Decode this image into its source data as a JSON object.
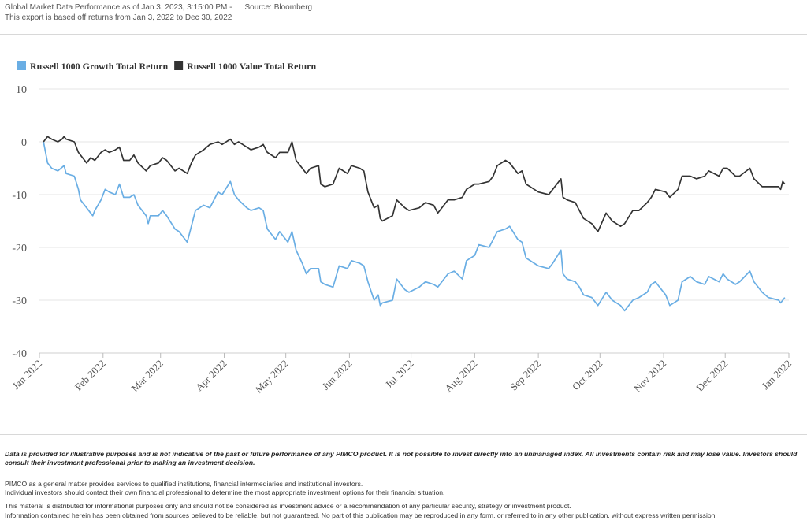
{
  "header": {
    "line1": "Global Market Data Performance as of Jan 3, 2023, 3:15:00 PM -",
    "source": "Source: Bloomberg",
    "line2": "This export is based off returns from Jan 3, 2022 to Dec 30, 2022"
  },
  "chart_data": {
    "type": "line",
    "title": "",
    "xlabel": "",
    "ylabel": "",
    "ylim": [
      -40,
      10
    ],
    "yticks": [
      "10",
      "0",
      "-10",
      "-20",
      "-30",
      "-40"
    ],
    "xticks": [
      "Jan 2022",
      "Feb 2022",
      "Mar 2022",
      "Apr 2022",
      "May 2022",
      "Jun 2022",
      "Jul 2022",
      "Aug 2022",
      "Sep 2022",
      "Oct 2022",
      "Nov 2022",
      "Dec 2022",
      "Jan 2022"
    ],
    "grid": true,
    "legend_position": "top-left",
    "x_range": [
      "2022-01-01",
      "2023-01-01"
    ],
    "series": [
      {
        "name": "Russell 1000 Growth Total Return",
        "color": "#6aaee4",
        "points": [
          [
            "2022-01-03",
            0
          ],
          [
            "2022-01-05",
            -4
          ],
          [
            "2022-01-07",
            -5
          ],
          [
            "2022-01-10",
            -5.5
          ],
          [
            "2022-01-13",
            -4.5
          ],
          [
            "2022-01-14",
            -6
          ],
          [
            "2022-01-18",
            -6.5
          ],
          [
            "2022-01-20",
            -9
          ],
          [
            "2022-01-21",
            -11
          ],
          [
            "2022-01-24",
            -12.5
          ],
          [
            "2022-01-27",
            -14
          ],
          [
            "2022-01-28",
            -13
          ],
          [
            "2022-01-31",
            -11
          ],
          [
            "2022-02-02",
            -9
          ],
          [
            "2022-02-04",
            -9.5
          ],
          [
            "2022-02-07",
            -10
          ],
          [
            "2022-02-09",
            -8
          ],
          [
            "2022-02-11",
            -10.5
          ],
          [
            "2022-02-14",
            -10.5
          ],
          [
            "2022-02-16",
            -10
          ],
          [
            "2022-02-18",
            -12
          ],
          [
            "2022-02-22",
            -14
          ],
          [
            "2022-02-23",
            -15.5
          ],
          [
            "2022-02-24",
            -14
          ],
          [
            "2022-02-28",
            -14
          ],
          [
            "2022-03-02",
            -13
          ],
          [
            "2022-03-04",
            -14
          ],
          [
            "2022-03-08",
            -16.5
          ],
          [
            "2022-03-10",
            -17
          ],
          [
            "2022-03-14",
            -19
          ],
          [
            "2022-03-16",
            -16
          ],
          [
            "2022-03-18",
            -13
          ],
          [
            "2022-03-22",
            -12
          ],
          [
            "2022-03-25",
            -12.5
          ],
          [
            "2022-03-29",
            -9.5
          ],
          [
            "2022-03-31",
            -10
          ],
          [
            "2022-04-04",
            -7.5
          ],
          [
            "2022-04-06",
            -10
          ],
          [
            "2022-04-08",
            -11
          ],
          [
            "2022-04-12",
            -12.5
          ],
          [
            "2022-04-14",
            -13
          ],
          [
            "2022-04-18",
            -12.5
          ],
          [
            "2022-04-20",
            -13
          ],
          [
            "2022-04-22",
            -16.5
          ],
          [
            "2022-04-26",
            -18.5
          ],
          [
            "2022-04-28",
            -17
          ],
          [
            "2022-05-02",
            -19
          ],
          [
            "2022-05-04",
            -17
          ],
          [
            "2022-05-06",
            -20.5
          ],
          [
            "2022-05-09",
            -23
          ],
          [
            "2022-05-11",
            -25
          ],
          [
            "2022-05-13",
            -24
          ],
          [
            "2022-05-17",
            -24
          ],
          [
            "2022-05-18",
            -26.5
          ],
          [
            "2022-05-20",
            -27
          ],
          [
            "2022-05-24",
            -27.5
          ],
          [
            "2022-05-27",
            -23.5
          ],
          [
            "2022-05-31",
            -24
          ],
          [
            "2022-06-02",
            -22.5
          ],
          [
            "2022-06-06",
            -23
          ],
          [
            "2022-06-08",
            -23.5
          ],
          [
            "2022-06-10",
            -26.5
          ],
          [
            "2022-06-13",
            -30
          ],
          [
            "2022-06-15",
            -29
          ],
          [
            "2022-06-16",
            -31
          ],
          [
            "2022-06-17",
            -30.5
          ],
          [
            "2022-06-22",
            -30
          ],
          [
            "2022-06-24",
            -26
          ],
          [
            "2022-06-28",
            -28
          ],
          [
            "2022-06-30",
            -28.5
          ],
          [
            "2022-07-05",
            -27.5
          ],
          [
            "2022-07-08",
            -26.5
          ],
          [
            "2022-07-12",
            -27
          ],
          [
            "2022-07-14",
            -27.5
          ],
          [
            "2022-07-19",
            -25
          ],
          [
            "2022-07-22",
            -24.5
          ],
          [
            "2022-07-26",
            -26
          ],
          [
            "2022-07-28",
            -22.5
          ],
          [
            "2022-08-01",
            -21.5
          ],
          [
            "2022-08-03",
            -19.5
          ],
          [
            "2022-08-08",
            -20
          ],
          [
            "2022-08-10",
            -18.5
          ],
          [
            "2022-08-12",
            -17
          ],
          [
            "2022-08-16",
            -16.5
          ],
          [
            "2022-08-18",
            -16
          ],
          [
            "2022-08-22",
            -18.5
          ],
          [
            "2022-08-24",
            -19
          ],
          [
            "2022-08-26",
            -22
          ],
          [
            "2022-08-30",
            -23
          ],
          [
            "2022-09-01",
            -23.5
          ],
          [
            "2022-09-06",
            -24
          ],
          [
            "2022-09-08",
            -23
          ],
          [
            "2022-09-12",
            -20.5
          ],
          [
            "2022-09-13",
            -25
          ],
          [
            "2022-09-15",
            -26
          ],
          [
            "2022-09-19",
            -26.5
          ],
          [
            "2022-09-21",
            -27.5
          ],
          [
            "2022-09-23",
            -29
          ],
          [
            "2022-09-27",
            -29.5
          ],
          [
            "2022-09-30",
            -31
          ],
          [
            "2022-10-04",
            -28.5
          ],
          [
            "2022-10-07",
            -30
          ],
          [
            "2022-10-11",
            -31
          ],
          [
            "2022-10-13",
            -32
          ],
          [
            "2022-10-17",
            -30
          ],
          [
            "2022-10-20",
            -29.5
          ],
          [
            "2022-10-24",
            -28.5
          ],
          [
            "2022-10-26",
            -27
          ],
          [
            "2022-10-28",
            -26.5
          ],
          [
            "2022-11-02",
            -29
          ],
          [
            "2022-11-04",
            -31
          ],
          [
            "2022-11-08",
            -30
          ],
          [
            "2022-11-10",
            -26.5
          ],
          [
            "2022-11-14",
            -25.5
          ],
          [
            "2022-11-17",
            -26.5
          ],
          [
            "2022-11-21",
            -27
          ],
          [
            "2022-11-23",
            -25.5
          ],
          [
            "2022-11-28",
            -26.5
          ],
          [
            "2022-11-30",
            -25
          ],
          [
            "2022-12-02",
            -26
          ],
          [
            "2022-12-06",
            -27
          ],
          [
            "2022-12-08",
            -26.5
          ],
          [
            "2022-12-13",
            -24.5
          ],
          [
            "2022-12-15",
            -26.5
          ],
          [
            "2022-12-19",
            -28.5
          ],
          [
            "2022-12-22",
            -29.5
          ],
          [
            "2022-12-27",
            -30
          ],
          [
            "2022-12-28",
            -30.5
          ],
          [
            "2022-12-30",
            -29.5
          ]
        ]
      },
      {
        "name": "Russell 1000 Value Total Return",
        "color": "#333333",
        "points": [
          [
            "2022-01-03",
            0
          ],
          [
            "2022-01-05",
            1
          ],
          [
            "2022-01-07",
            0.5
          ],
          [
            "2022-01-10",
            0
          ],
          [
            "2022-01-12",
            0.5
          ],
          [
            "2022-01-13",
            1
          ],
          [
            "2022-01-14",
            0.5
          ],
          [
            "2022-01-18",
            0
          ],
          [
            "2022-01-20",
            -2
          ],
          [
            "2022-01-24",
            -4
          ],
          [
            "2022-01-26",
            -3
          ],
          [
            "2022-01-28",
            -3.5
          ],
          [
            "2022-01-31",
            -2
          ],
          [
            "2022-02-02",
            -1.5
          ],
          [
            "2022-02-04",
            -2
          ],
          [
            "2022-02-07",
            -1.5
          ],
          [
            "2022-02-09",
            -1
          ],
          [
            "2022-02-11",
            -3.5
          ],
          [
            "2022-02-14",
            -3.5
          ],
          [
            "2022-02-16",
            -2.5
          ],
          [
            "2022-02-18",
            -4
          ],
          [
            "2022-02-22",
            -5.5
          ],
          [
            "2022-02-24",
            -4.5
          ],
          [
            "2022-02-28",
            -4
          ],
          [
            "2022-03-02",
            -3
          ],
          [
            "2022-03-04",
            -3.5
          ],
          [
            "2022-03-08",
            -5.5
          ],
          [
            "2022-03-10",
            -5
          ],
          [
            "2022-03-14",
            -6
          ],
          [
            "2022-03-16",
            -4
          ],
          [
            "2022-03-18",
            -2.5
          ],
          [
            "2022-03-22",
            -1.5
          ],
          [
            "2022-03-25",
            -0.5
          ],
          [
            "2022-03-29",
            0
          ],
          [
            "2022-03-31",
            -0.5
          ],
          [
            "2022-04-04",
            0.5
          ],
          [
            "2022-04-06",
            -0.5
          ],
          [
            "2022-04-08",
            0
          ],
          [
            "2022-04-12",
            -1
          ],
          [
            "2022-04-14",
            -1.5
          ],
          [
            "2022-04-18",
            -1
          ],
          [
            "2022-04-20",
            -0.5
          ],
          [
            "2022-04-22",
            -2
          ],
          [
            "2022-04-26",
            -3
          ],
          [
            "2022-04-28",
            -2
          ],
          [
            "2022-05-02",
            -2
          ],
          [
            "2022-05-04",
            0
          ],
          [
            "2022-05-06",
            -3.5
          ],
          [
            "2022-05-09",
            -5
          ],
          [
            "2022-05-11",
            -6
          ],
          [
            "2022-05-13",
            -5
          ],
          [
            "2022-05-17",
            -4.5
          ],
          [
            "2022-05-18",
            -8
          ],
          [
            "2022-05-20",
            -8.5
          ],
          [
            "2022-05-24",
            -8
          ],
          [
            "2022-05-27",
            -5
          ],
          [
            "2022-05-31",
            -6
          ],
          [
            "2022-06-02",
            -4.5
          ],
          [
            "2022-06-06",
            -5
          ],
          [
            "2022-06-08",
            -5.5
          ],
          [
            "2022-06-10",
            -9.5
          ],
          [
            "2022-06-13",
            -12.5
          ],
          [
            "2022-06-15",
            -12
          ],
          [
            "2022-06-16",
            -14.5
          ],
          [
            "2022-06-17",
            -15
          ],
          [
            "2022-06-22",
            -14
          ],
          [
            "2022-06-24",
            -11
          ],
          [
            "2022-06-28",
            -12.5
          ],
          [
            "2022-06-30",
            -13
          ],
          [
            "2022-07-05",
            -12.5
          ],
          [
            "2022-07-08",
            -11.5
          ],
          [
            "2022-07-12",
            -12
          ],
          [
            "2022-07-14",
            -13.5
          ],
          [
            "2022-07-19",
            -11
          ],
          [
            "2022-07-22",
            -11
          ],
          [
            "2022-07-26",
            -10.5
          ],
          [
            "2022-07-28",
            -9
          ],
          [
            "2022-08-01",
            -8
          ],
          [
            "2022-08-03",
            -8
          ],
          [
            "2022-08-08",
            -7.5
          ],
          [
            "2022-08-10",
            -6.5
          ],
          [
            "2022-08-12",
            -4.5
          ],
          [
            "2022-08-16",
            -3.5
          ],
          [
            "2022-08-18",
            -4
          ],
          [
            "2022-08-22",
            -6
          ],
          [
            "2022-08-24",
            -5.5
          ],
          [
            "2022-08-26",
            -8
          ],
          [
            "2022-08-30",
            -9
          ],
          [
            "2022-09-01",
            -9.5
          ],
          [
            "2022-09-06",
            -10
          ],
          [
            "2022-09-08",
            -9
          ],
          [
            "2022-09-12",
            -7
          ],
          [
            "2022-09-13",
            -10.5
          ],
          [
            "2022-09-15",
            -11
          ],
          [
            "2022-09-19",
            -11.5
          ],
          [
            "2022-09-21",
            -13
          ],
          [
            "2022-09-23",
            -14.5
          ],
          [
            "2022-09-27",
            -15.5
          ],
          [
            "2022-09-30",
            -17
          ],
          [
            "2022-10-04",
            -13.5
          ],
          [
            "2022-10-07",
            -15
          ],
          [
            "2022-10-11",
            -16
          ],
          [
            "2022-10-13",
            -15.5
          ],
          [
            "2022-10-17",
            -13
          ],
          [
            "2022-10-20",
            -13
          ],
          [
            "2022-10-24",
            -11.5
          ],
          [
            "2022-10-26",
            -10.5
          ],
          [
            "2022-10-28",
            -9
          ],
          [
            "2022-11-02",
            -9.5
          ],
          [
            "2022-11-04",
            -10.5
          ],
          [
            "2022-11-08",
            -9
          ],
          [
            "2022-11-10",
            -6.5
          ],
          [
            "2022-11-14",
            -6.5
          ],
          [
            "2022-11-17",
            -7
          ],
          [
            "2022-11-21",
            -6.5
          ],
          [
            "2022-11-23",
            -5.5
          ],
          [
            "2022-11-28",
            -6.5
          ],
          [
            "2022-11-30",
            -5
          ],
          [
            "2022-12-02",
            -5
          ],
          [
            "2022-12-06",
            -6.5
          ],
          [
            "2022-12-08",
            -6.5
          ],
          [
            "2022-12-13",
            -5
          ],
          [
            "2022-12-15",
            -7
          ],
          [
            "2022-12-19",
            -8.5
          ],
          [
            "2022-12-22",
            -8.5
          ],
          [
            "2022-12-27",
            -8.5
          ],
          [
            "2022-12-28",
            -9
          ],
          [
            "2022-12-29",
            -7.5
          ],
          [
            "2022-12-30",
            -8
          ]
        ]
      }
    ]
  },
  "disclaimer": {
    "bold": "Data is provided for illustrative purposes and is not indicative of the past or future performance of any PIMCO product. It is not possible to invest directly into an unmanaged index. All investments contain risk and may lose value. Investors should consult their investment professional prior to making an investment decision.",
    "p1": "PIMCO as a general matter provides services to qualified institutions, financial intermediaries and institutional investors.",
    "p2": "Individual investors should contact their own financial professional to determine the most appropriate investment options for their financial situation.",
    "p3": "This material is distributed for informational purposes only and should not be considered as investment advice or a recommendation of any particular security, strategy or investment product.",
    "p4": "Information contained herein has been obtained from sources believed to be reliable, but not guaranteed. No part of this publication may be reproduced in any form, or referred to in any other publication, without express written permission."
  }
}
